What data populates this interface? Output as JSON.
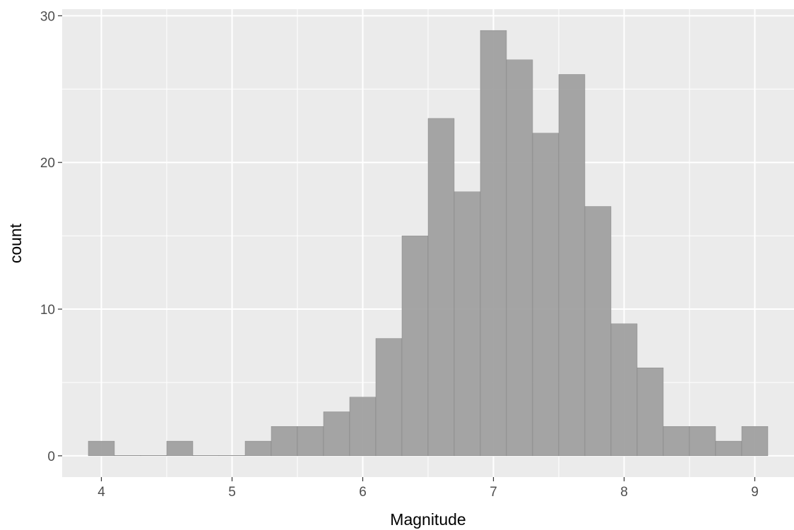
{
  "chart_data": {
    "type": "bar",
    "subtype": "histogram",
    "xlabel": "Magnitude",
    "ylabel": "count",
    "xlim": [
      3.7,
      9.3
    ],
    "ylim": [
      -1.45,
      30.45
    ],
    "x_ticks": [
      4,
      5,
      6,
      7,
      8,
      9
    ],
    "y_ticks": [
      0,
      10,
      20,
      30
    ],
    "bin_width": 0.2,
    "bins": [
      {
        "x0": 3.9,
        "x1": 4.1,
        "count": 1
      },
      {
        "x0": 4.1,
        "x1": 4.3,
        "count": 0
      },
      {
        "x0": 4.3,
        "x1": 4.5,
        "count": 0
      },
      {
        "x0": 4.5,
        "x1": 4.7,
        "count": 1
      },
      {
        "x0": 4.7,
        "x1": 4.9,
        "count": 0
      },
      {
        "x0": 4.9,
        "x1": 5.1,
        "count": 0
      },
      {
        "x0": 5.1,
        "x1": 5.3,
        "count": 1
      },
      {
        "x0": 5.3,
        "x1": 5.5,
        "count": 2
      },
      {
        "x0": 5.5,
        "x1": 5.7,
        "count": 2
      },
      {
        "x0": 5.7,
        "x1": 5.9,
        "count": 3
      },
      {
        "x0": 5.9,
        "x1": 6.1,
        "count": 4
      },
      {
        "x0": 6.1,
        "x1": 6.3,
        "count": 8
      },
      {
        "x0": 6.3,
        "x1": 6.5,
        "count": 15
      },
      {
        "x0": 6.5,
        "x1": 6.7,
        "count": 23
      },
      {
        "x0": 6.7,
        "x1": 6.9,
        "count": 18
      },
      {
        "x0": 6.9,
        "x1": 7.1,
        "count": 29
      },
      {
        "x0": 7.1,
        "x1": 7.3,
        "count": 27
      },
      {
        "x0": 7.3,
        "x1": 7.5,
        "count": 22
      },
      {
        "x0": 7.5,
        "x1": 7.7,
        "count": 26
      },
      {
        "x0": 7.7,
        "x1": 7.9,
        "count": 17
      },
      {
        "x0": 7.9,
        "x1": 8.1,
        "count": 9
      },
      {
        "x0": 8.1,
        "x1": 8.3,
        "count": 6
      },
      {
        "x0": 8.3,
        "x1": 8.5,
        "count": 2
      },
      {
        "x0": 8.5,
        "x1": 8.7,
        "count": 2
      },
      {
        "x0": 8.7,
        "x1": 8.9,
        "count": 1
      },
      {
        "x0": 8.9,
        "x1": 9.1,
        "count": 2
      }
    ],
    "grid": true,
    "legend": "none",
    "colors": {
      "panel_background": "#ebebeb",
      "grid_major": "#ffffff",
      "bar_fill": "#a0a0a0",
      "bar_outline": "#7a7a7a",
      "tick_text": "#4d4d4d",
      "axis_title": "#000000"
    }
  }
}
